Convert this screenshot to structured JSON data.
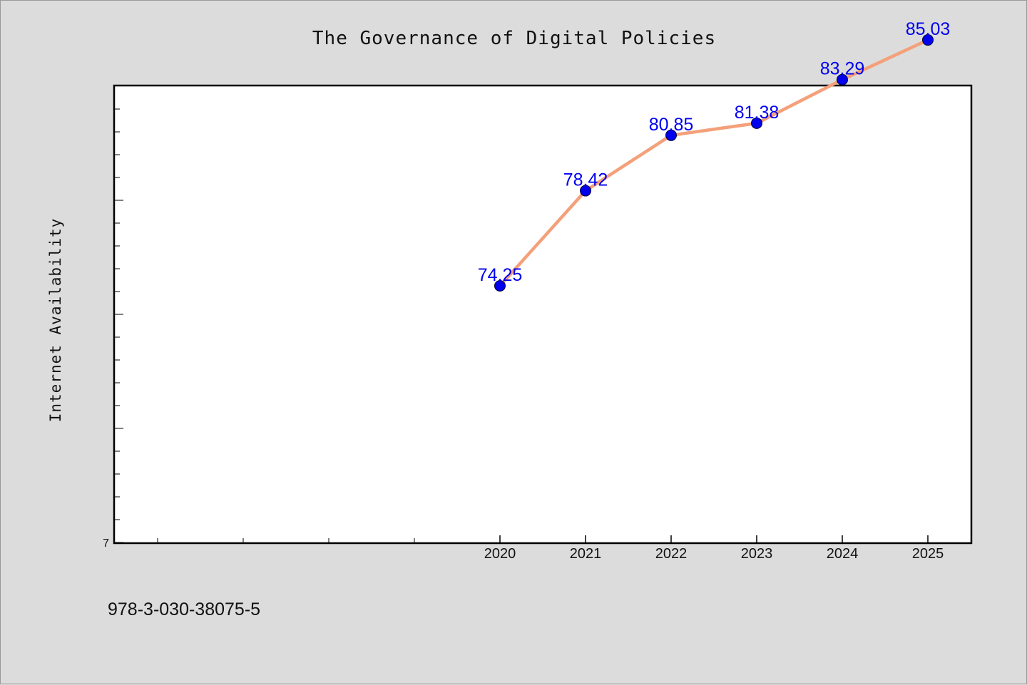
{
  "chart_data": {
    "type": "line",
    "title": "The Governance of Digital Policies",
    "xlabel": "",
    "ylabel": "Internet Availability",
    "x": [
      "2020",
      "2021",
      "2022",
      "2023",
      "2024",
      "2025"
    ],
    "values": [
      74.25,
      78.42,
      80.85,
      81.38,
      83.29,
      85.03
    ],
    "data_labels": [
      "74.25",
      "78.42",
      "80.85",
      "81.38",
      "83.29",
      "85.03"
    ],
    "ylim": [
      63,
      83
    ],
    "y_tick_labels": [
      "7"
    ],
    "grid": false,
    "line_color": "#f4a07a",
    "marker_color": "#0000ee",
    "label_color": "#0000ee"
  },
  "footer": {
    "isbn": "978-3-030-38075-5"
  }
}
